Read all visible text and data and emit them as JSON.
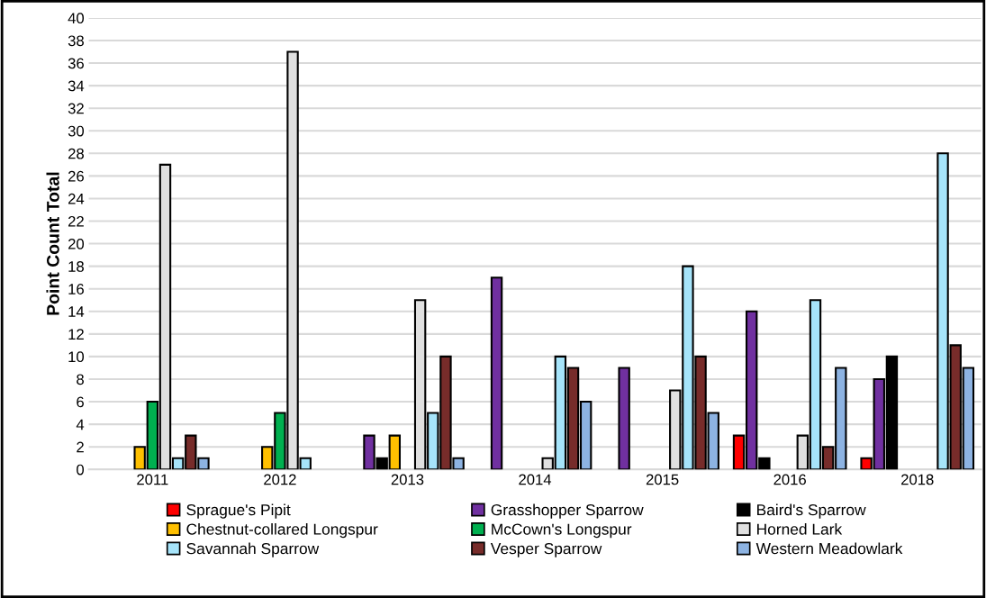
{
  "chart_data": {
    "type": "bar",
    "ylabel": "Point Count Total",
    "categories": [
      "2011",
      "2012",
      "2013",
      "2014",
      "2015",
      "2016",
      "2018"
    ],
    "series": [
      {
        "name": "Sprague's Pipit",
        "color": "#ff0000",
        "values": [
          0,
          0,
          0,
          0,
          0,
          3,
          1
        ]
      },
      {
        "name": "Grasshopper Sparrow",
        "color": "#7030a0",
        "values": [
          0,
          0,
          3,
          17,
          9,
          14,
          8
        ]
      },
      {
        "name": "Baird's Sparrow",
        "color": "#000000",
        "values": [
          0,
          0,
          1,
          0,
          0,
          1,
          10
        ]
      },
      {
        "name": "Chestnut-collared Longspur",
        "color": "#ffc000",
        "values": [
          2,
          2,
          3,
          0,
          0,
          0,
          0
        ]
      },
      {
        "name": "McCown's Longspur",
        "color": "#00b050",
        "values": [
          6,
          5,
          0,
          0,
          0,
          0,
          0
        ]
      },
      {
        "name": "Horned Lark",
        "color": "#e0e0e0",
        "values": [
          27,
          37,
          15,
          1,
          7,
          3,
          0
        ]
      },
      {
        "name": "Savannah Sparrow",
        "color": "#a6e4fa",
        "values": [
          1,
          1,
          5,
          10,
          18,
          15,
          28
        ]
      },
      {
        "name": "Vesper Sparrow",
        "color": "#772c2a",
        "values": [
          3,
          0,
          10,
          9,
          10,
          2,
          11
        ]
      },
      {
        "name": "Western Meadowlark",
        "color": "#8db3e2",
        "values": [
          1,
          0,
          1,
          6,
          5,
          9,
          9
        ]
      }
    ],
    "ylim": [
      0,
      40
    ],
    "yticks": [
      0,
      2,
      4,
      6,
      8,
      10,
      12,
      14,
      16,
      18,
      20,
      22,
      24,
      26,
      28,
      30,
      32,
      34,
      36,
      38,
      40
    ],
    "grid": "y",
    "legend": "bottom"
  }
}
